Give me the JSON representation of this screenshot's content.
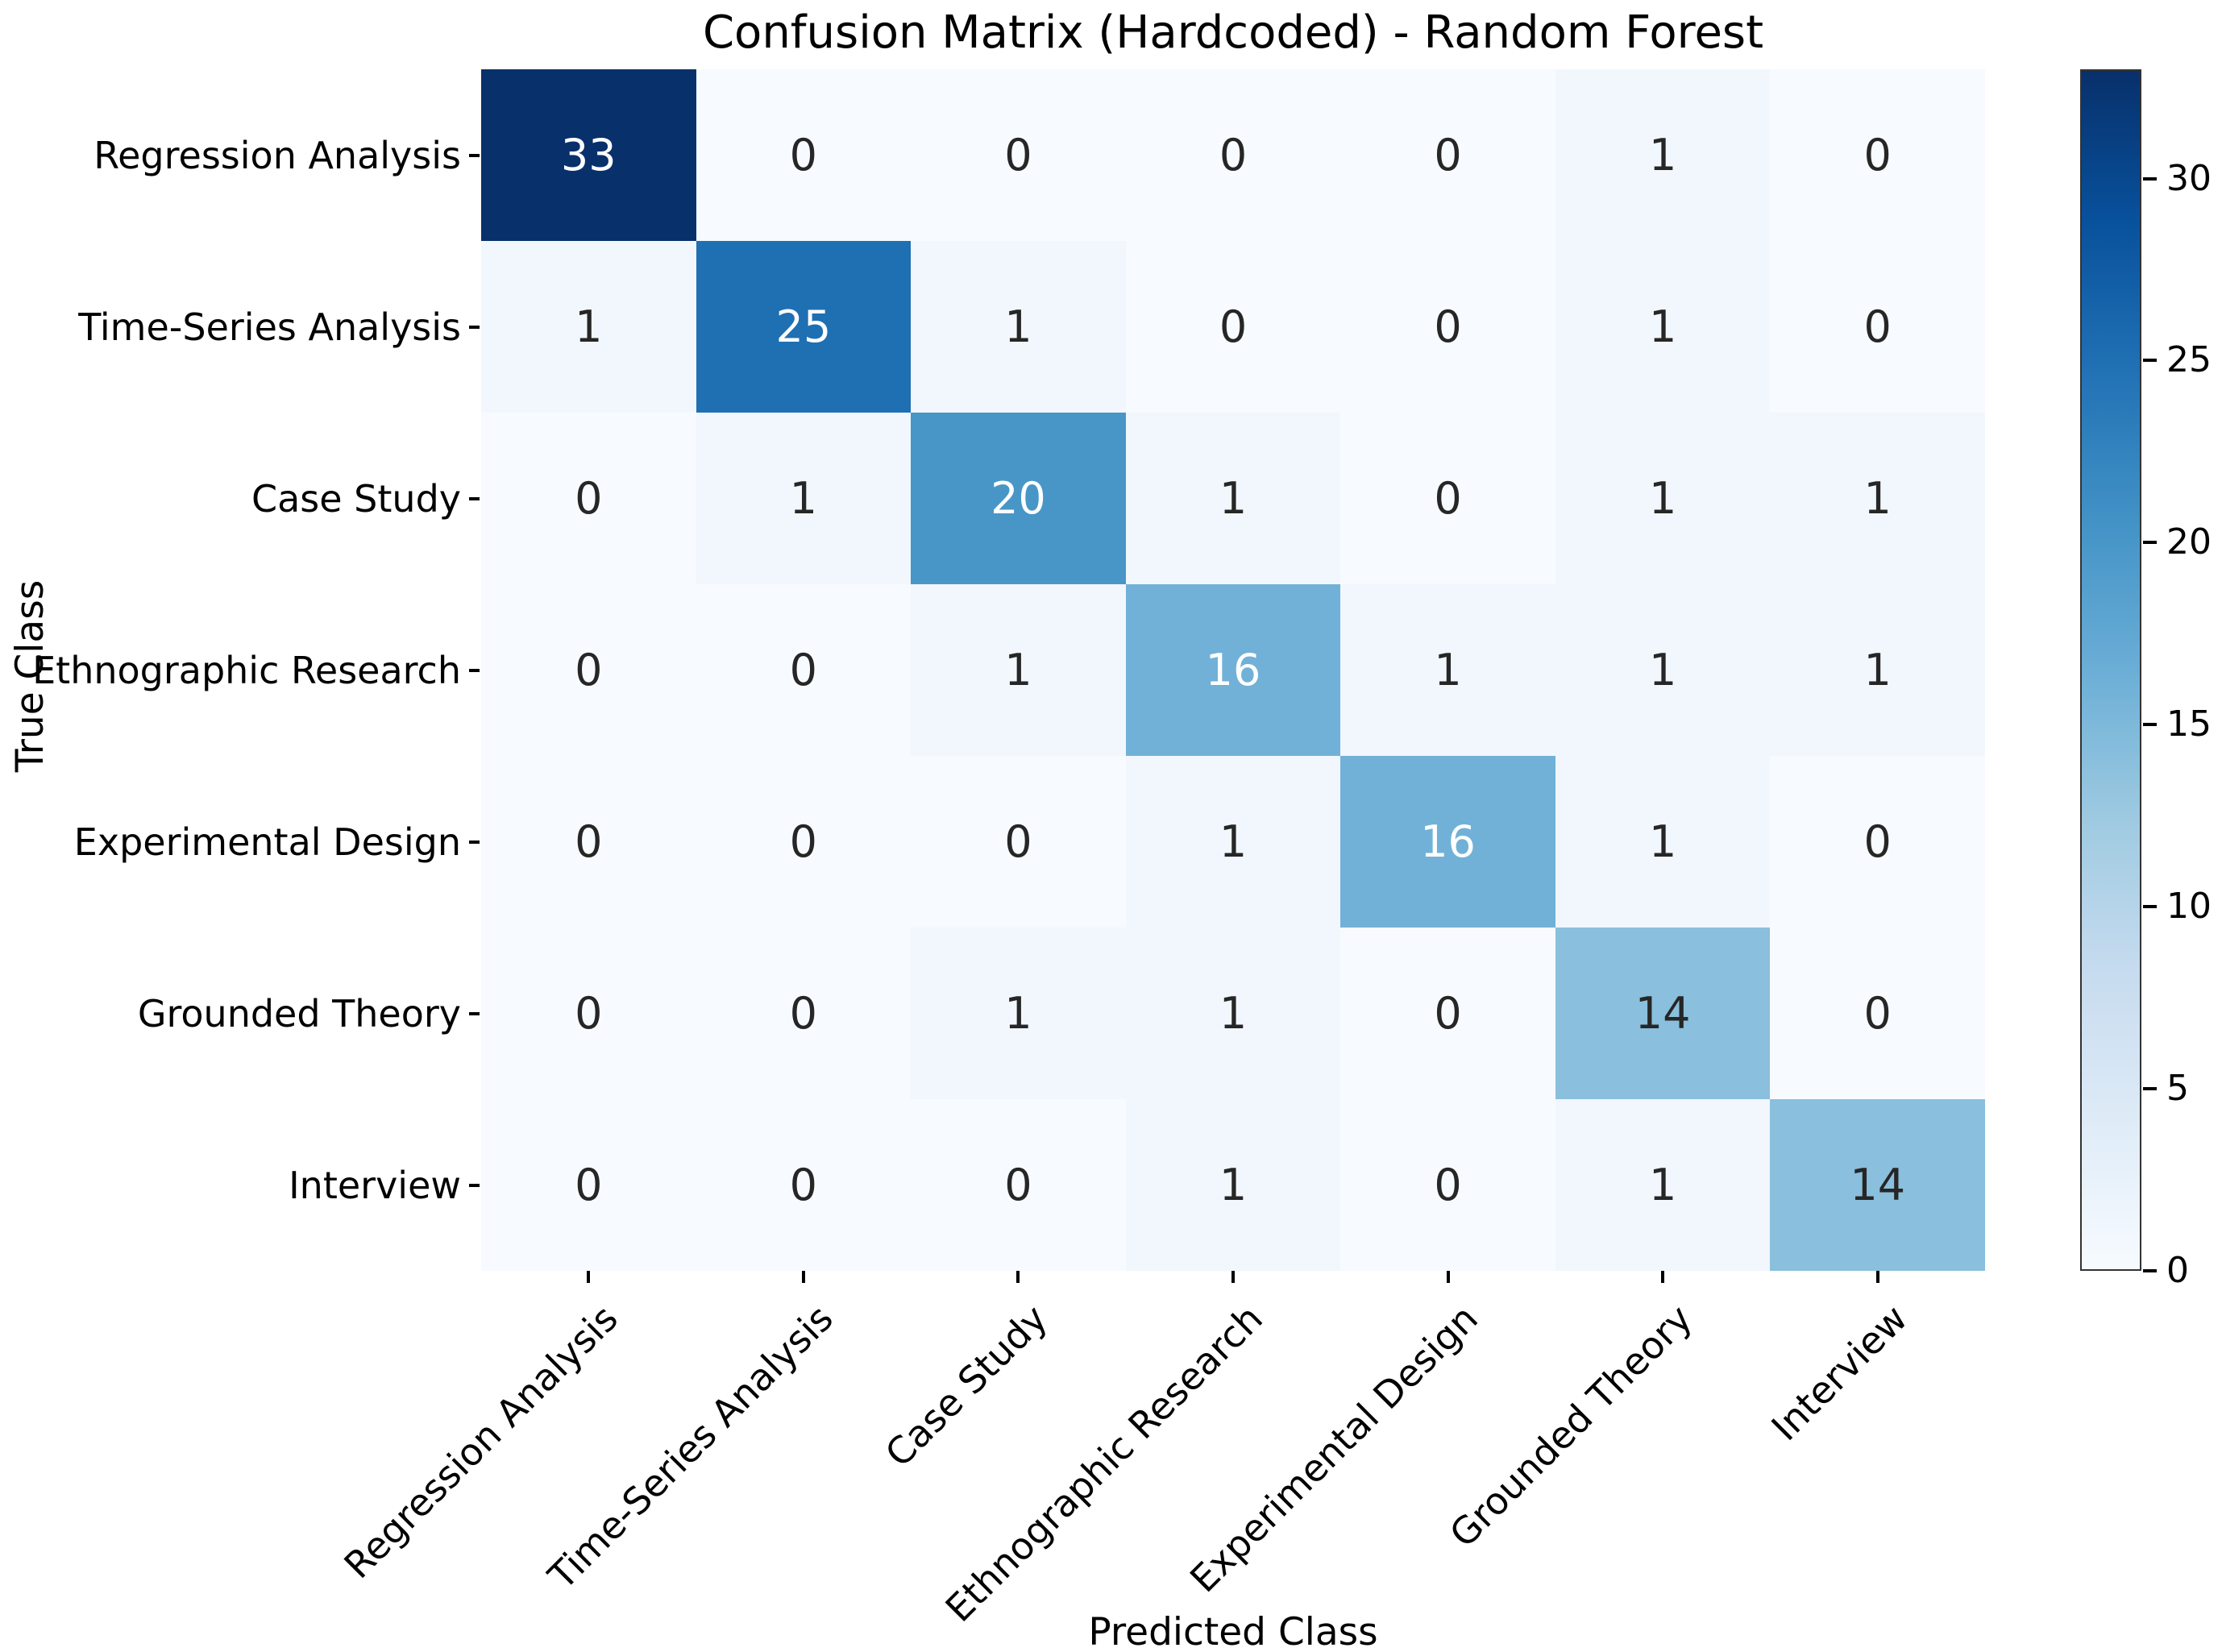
{
  "chart_data": {
    "type": "heatmap",
    "title": "Confusion Matrix (Hardcoded) - Random Forest",
    "xlabel": "Predicted Class",
    "ylabel": "True Class",
    "classes": [
      "Regression Analysis",
      "Time-Series Analysis",
      "Case Study",
      "Ethnographic Research",
      "Experimental Design",
      "Grounded Theory",
      "Interview"
    ],
    "matrix": [
      [
        33,
        0,
        0,
        0,
        0,
        1,
        0
      ],
      [
        1,
        25,
        1,
        0,
        0,
        1,
        0
      ],
      [
        0,
        1,
        20,
        1,
        0,
        1,
        1
      ],
      [
        0,
        0,
        1,
        16,
        1,
        1,
        1
      ],
      [
        0,
        0,
        0,
        1,
        16,
        1,
        0
      ],
      [
        0,
        0,
        1,
        1,
        0,
        14,
        0
      ],
      [
        0,
        0,
        0,
        1,
        0,
        1,
        14
      ]
    ],
    "vmin": 0,
    "vmax": 33,
    "colormap": "Blues",
    "colorbar_ticks": [
      0,
      5,
      10,
      15,
      20,
      25,
      30
    ],
    "grid": false,
    "legend_position": "colorbar-right"
  },
  "colors": {
    "background": "#ffffff",
    "colormap_stops": [
      "#f7fbff",
      "#deebf7",
      "#c6dbef",
      "#9ecae1",
      "#6baed6",
      "#4292c6",
      "#2171b5",
      "#08519c",
      "#08306b"
    ],
    "annotation_dark": "#262626",
    "annotation_light": "#ffffff",
    "axis_text": "#000000"
  }
}
